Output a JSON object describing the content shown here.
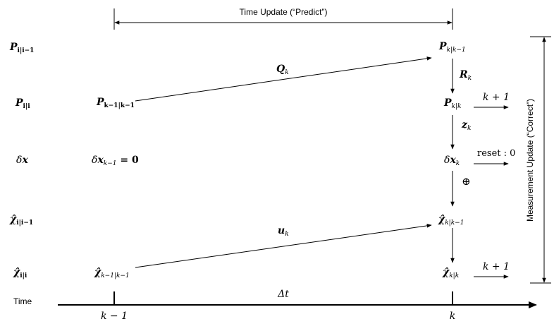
{
  "header": {
    "time_update": "Time Update (“Predict”)"
  },
  "side": {
    "measurement_update": "Measurement Update (“Correct”)"
  },
  "rows": {
    "p_prior": {
      "base": "P",
      "sub": "i|i−1"
    },
    "p_post": {
      "base": "P",
      "sub": "i|i"
    },
    "dx": {
      "pre": "δ",
      "base": "x"
    },
    "x_prior": {
      "base": "χ̂",
      "sub": "i|i−1"
    },
    "x_post": {
      "base": "χ̂",
      "sub": "i|i"
    },
    "time": "Time"
  },
  "left_col": {
    "p": {
      "base": "P",
      "sub": "k−1|k−1"
    },
    "dx": {
      "pre": "δ",
      "base": "x",
      "sub": "k−1",
      "rest": " = 0"
    },
    "x": {
      "base": "χ̂",
      "sub": "k−1|k−1"
    }
  },
  "right_col": {
    "p_prior": {
      "base": "P",
      "sub": "k|k−1"
    },
    "p_post": {
      "base": "P",
      "sub": "k|k"
    },
    "dx": {
      "pre": "δ",
      "base": "x",
      "sub": "k"
    },
    "x_prior": {
      "base": "χ̂",
      "sub": "k|k−1"
    },
    "x_post": {
      "base": "χ̂",
      "sub": "k|k"
    }
  },
  "edge_labels": {
    "q": {
      "base": "Q",
      "sub": "k"
    },
    "u": {
      "base": "u",
      "sub": "k"
    },
    "r": {
      "base": "R",
      "sub": "k"
    },
    "z": {
      "base": "z",
      "sub": "k"
    },
    "oplus": "⊕",
    "next_p": "k + 1",
    "reset": "reset : 0",
    "next_x": "k + 1"
  },
  "axis": {
    "delta_t": "Δt",
    "tick_left": "k − 1",
    "tick_right": "k"
  }
}
